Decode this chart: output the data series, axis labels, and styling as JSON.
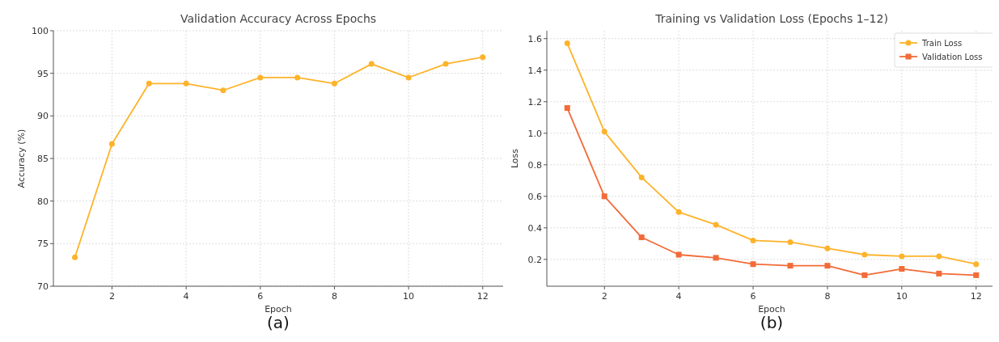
{
  "chart_data": [
    {
      "type": "line",
      "title": "Validation Accuracy Across Epochs",
      "xlabel": "Epoch",
      "ylabel": "Accuracy (%)",
      "annotations": [
        "(a)"
      ],
      "x": [
        1,
        2,
        3,
        4,
        5,
        6,
        7,
        8,
        9,
        10,
        11,
        12
      ],
      "series": [
        {
          "color": "#fdb32a",
          "marker": "circle",
          "values": [
            73.4,
            86.7,
            93.8,
            93.8,
            93.0,
            94.5,
            94.5,
            93.8,
            96.1,
            94.5,
            96.1,
            96.9
          ]
        }
      ],
      "xlim": [
        0.42,
        12.55
      ],
      "xticks": [
        2,
        4,
        6,
        8,
        10,
        12
      ],
      "ylim": [
        70,
        100
      ],
      "yticks": [
        70,
        75,
        80,
        85,
        90,
        95,
        100
      ],
      "grid": true,
      "line_style": "solid"
    },
    {
      "type": "line",
      "title": "Training vs Validation Loss (Epochs 1–12)",
      "xlabel": "Epoch",
      "ylabel": "Loss",
      "annotations": [
        "(b)"
      ],
      "x": [
        1,
        2,
        3,
        4,
        5,
        6,
        7,
        8,
        9,
        10,
        11,
        12
      ],
      "series": [
        {
          "name": "Train Loss",
          "color": "#fdb32a",
          "marker": "circle",
          "values": [
            1.57,
            1.01,
            0.72,
            0.5,
            0.42,
            0.32,
            0.31,
            0.27,
            0.23,
            0.22,
            0.22,
            0.17
          ]
        },
        {
          "name": "Validation Loss",
          "color": "#f26b38",
          "marker": "square",
          "values": [
            1.16,
            0.6,
            0.34,
            0.23,
            0.21,
            0.17,
            0.16,
            0.16,
            0.1,
            0.14,
            0.11,
            0.1
          ]
        }
      ],
      "xlim": [
        0.45,
        12.55
      ],
      "xticks": [
        2,
        4,
        6,
        8,
        10,
        12
      ],
      "ylim": [
        0.03,
        1.65
      ],
      "yticks": [
        {
          "value": 0.2,
          "label": "0.2"
        },
        {
          "value": 0.4,
          "label": "0.4"
        },
        {
          "value": 0.6,
          "label": "0.6"
        },
        {
          "value": 0.8,
          "label": "0.8"
        },
        {
          "value": 1.0,
          "label": "1.0"
        },
        {
          "value": 1.2,
          "label": "1.2"
        },
        {
          "value": 1.4,
          "label": "1.4"
        },
        {
          "value": 1.6,
          "label": "1.6"
        }
      ],
      "grid": true,
      "legend": "top right",
      "line_style": "solid"
    }
  ]
}
